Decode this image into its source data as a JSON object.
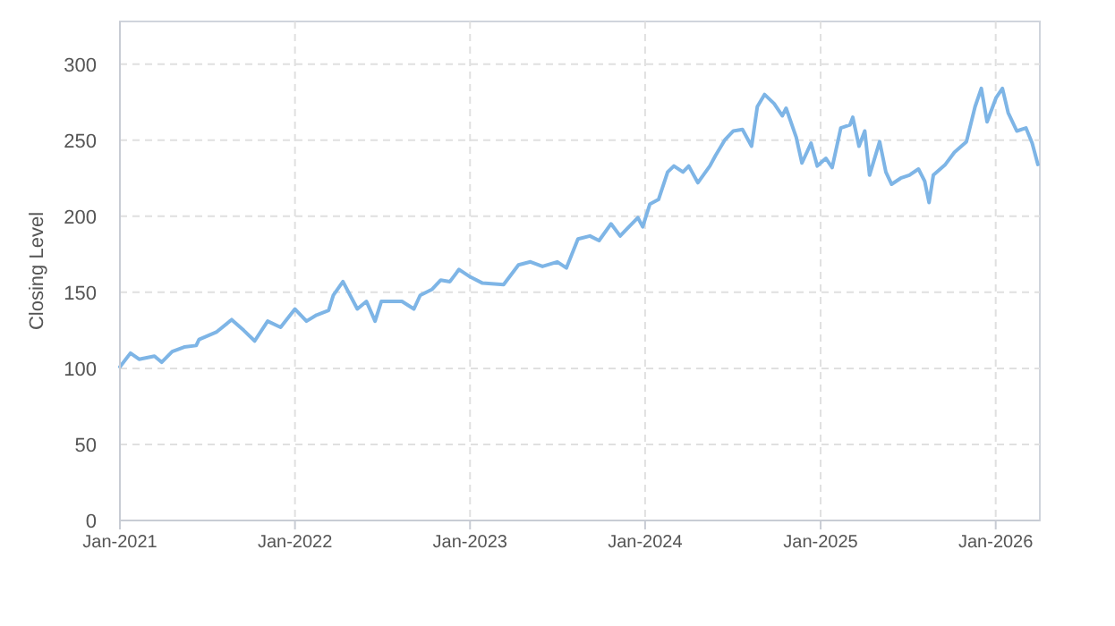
{
  "chart_data": {
    "type": "line",
    "ylabel": "Closing Level",
    "xlim": [
      "2021-01-01",
      "2026-04-03"
    ],
    "ylim": [
      0,
      328
    ],
    "xticks": [
      {
        "value": "2021-01-01",
        "label": "Jan-2021"
      },
      {
        "value": "2022-01-01",
        "label": "Jan-2022"
      },
      {
        "value": "2023-01-01",
        "label": "Jan-2023"
      },
      {
        "value": "2024-01-01",
        "label": "Jan-2024"
      },
      {
        "value": "2025-01-01",
        "label": "Jan-2025"
      },
      {
        "value": "2026-01-01",
        "label": "Jan-2026"
      }
    ],
    "yticks": [
      0,
      50,
      100,
      150,
      200,
      250,
      300
    ],
    "grid": true,
    "marker": "none",
    "line_style": "solid",
    "x": [
      "2021-01-01",
      "2021-01-23",
      "2021-02-10",
      "2021-03-14",
      "2021-03-29",
      "2021-04-20",
      "2021-05-15",
      "2021-06-09",
      "2021-06-15",
      "2021-07-22",
      "2021-08-22",
      "2021-09-16",
      "2021-10-09",
      "2021-11-05",
      "2021-12-02",
      "2022-01-01",
      "2022-01-25",
      "2022-02-15",
      "2022-03-12",
      "2022-03-22",
      "2022-04-11",
      "2022-05-11",
      "2022-05-30",
      "2022-06-17",
      "2022-06-30",
      "2022-08-12",
      "2022-09-06",
      "2022-09-19",
      "2022-10-14",
      "2022-11-01",
      "2022-11-20",
      "2022-12-09",
      "2023-01-02",
      "2023-01-27",
      "2023-03-12",
      "2023-04-12",
      "2023-05-07",
      "2023-06-01",
      "2023-07-02",
      "2023-07-21",
      "2023-08-14",
      "2023-09-08",
      "2023-09-27",
      "2023-10-22",
      "2023-11-10",
      "2023-11-22",
      "2023-12-17",
      "2023-12-27",
      "2024-01-11",
      "2024-01-29",
      "2024-02-17",
      "2024-03-01",
      "2024-03-20",
      "2024-04-01",
      "2024-04-20",
      "2024-05-15",
      "2024-05-27",
      "2024-06-15",
      "2024-07-03",
      "2024-07-22",
      "2024-08-10",
      "2024-08-22",
      "2024-09-06",
      "2024-09-26",
      "2024-10-13",
      "2024-10-21",
      "2024-11-11",
      "2024-11-23",
      "2024-12-12",
      "2024-12-25",
      "2025-01-12",
      "2025-01-25",
      "2025-02-12",
      "2025-03-03",
      "2025-03-09",
      "2025-03-22",
      "2025-04-03",
      "2025-04-13",
      "2025-05-04",
      "2025-05-17",
      "2025-05-29",
      "2025-06-17",
      "2025-07-05",
      "2025-07-24",
      "2025-08-06",
      "2025-08-15",
      "2025-08-24",
      "2025-09-18",
      "2025-10-07",
      "2025-11-01",
      "2025-11-19",
      "2025-12-02",
      "2025-12-14",
      "2026-01-02",
      "2026-01-15",
      "2026-01-27",
      "2026-02-14",
      "2026-03-05",
      "2026-03-18",
      "2026-03-30"
    ],
    "series": [
      {
        "color": "#7eb5e6",
        "values": [
          101,
          110,
          106,
          108,
          104,
          111,
          114,
          115,
          119,
          124,
          132,
          125,
          118,
          131,
          127,
          139,
          131,
          135,
          138,
          148,
          157,
          139,
          144,
          131,
          144,
          144,
          139,
          148,
          152,
          158,
          157,
          165,
          160,
          156,
          155,
          168,
          170,
          167,
          170,
          166,
          185,
          187,
          184,
          195,
          187,
          191,
          199,
          193,
          208,
          211,
          229,
          233,
          229,
          233,
          222,
          233,
          240,
          250,
          256,
          257,
          246,
          272,
          280,
          274,
          266,
          271,
          252,
          235,
          248,
          233,
          238,
          232,
          258,
          260,
          265,
          246,
          256,
          227,
          249,
          229,
          221,
          225,
          227,
          231,
          223,
          209,
          227,
          234,
          242,
          249,
          272,
          284,
          262,
          278,
          284,
          268,
          256,
          258,
          248,
          234
        ]
      }
    ]
  }
}
